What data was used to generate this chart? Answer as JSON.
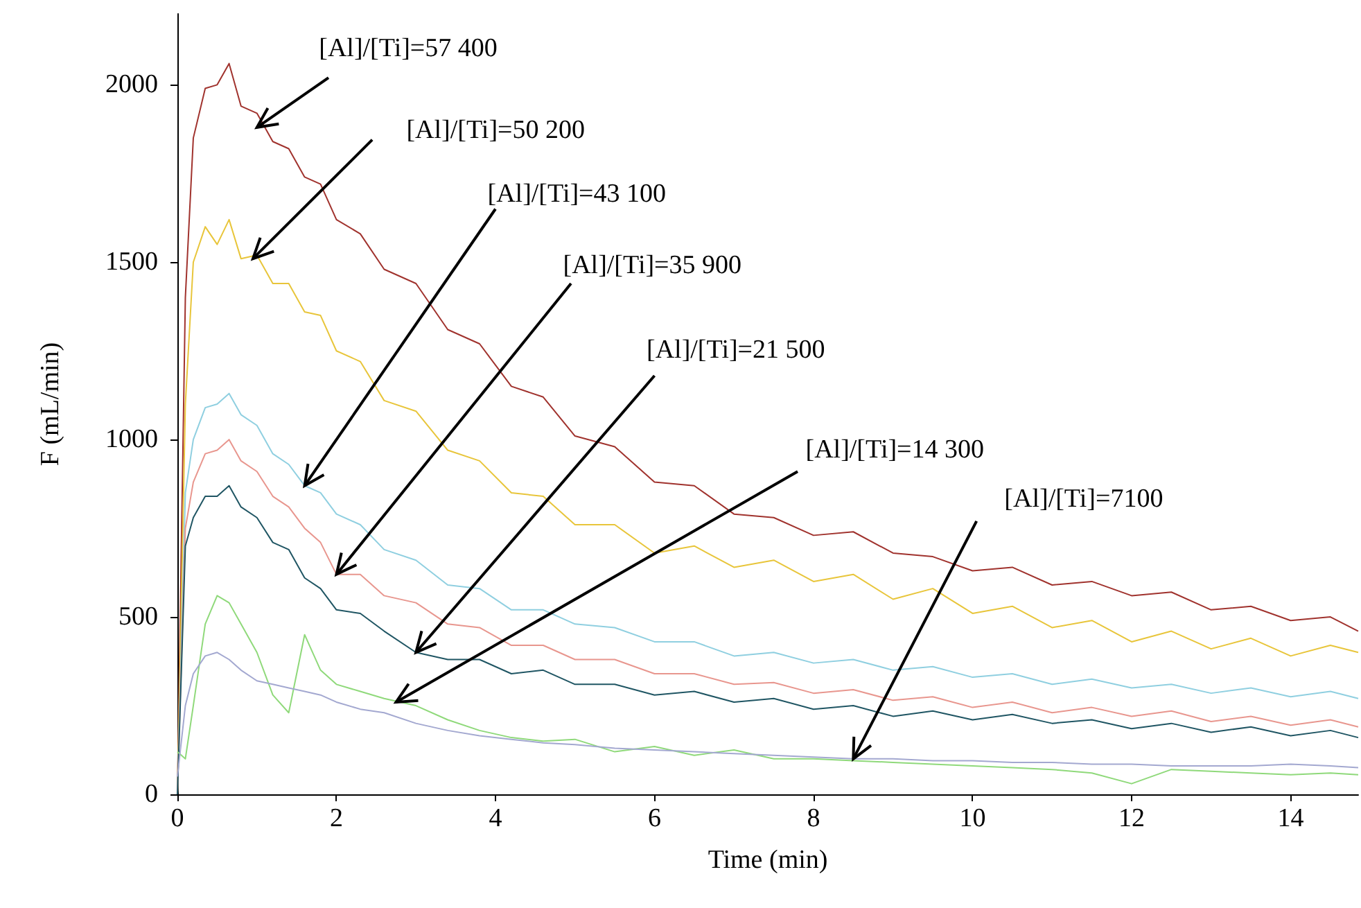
{
  "chart_data": {
    "type": "line",
    "xlabel": "Time (min)",
    "ylabel": "F (mL/min)",
    "xlim": [
      0,
      14.85
    ],
    "ylim": [
      0,
      2200
    ],
    "xticks": [
      0,
      2,
      4,
      6,
      8,
      10,
      12,
      14
    ],
    "yticks": [
      0,
      500,
      1000,
      1500,
      2000
    ],
    "grid": false,
    "marker": "none",
    "line_style": "solid",
    "x": [
      0,
      0.1,
      0.2,
      0.35,
      0.5,
      0.65,
      0.8,
      1.0,
      1.2,
      1.4,
      1.6,
      1.8,
      2.0,
      2.3,
      2.6,
      3.0,
      3.4,
      3.8,
      4.2,
      4.6,
      5.0,
      5.5,
      6.0,
      6.5,
      7.0,
      7.5,
      8.0,
      8.5,
      9.0,
      9.5,
      10.0,
      10.5,
      11.0,
      11.5,
      12.0,
      12.5,
      13.0,
      13.5,
      14.0,
      14.5,
      14.85
    ],
    "series": [
      {
        "color": "#a0322d",
        "values": [
          0,
          1400,
          1850,
          1990,
          2000,
          2060,
          1940,
          1920,
          1840,
          1820,
          1740,
          1720,
          1620,
          1580,
          1480,
          1440,
          1310,
          1270,
          1150,
          1120,
          1010,
          980,
          880,
          870,
          790,
          780,
          730,
          740,
          680,
          670,
          630,
          640,
          590,
          600,
          560,
          570,
          520,
          530,
          490,
          500,
          460
        ]
      },
      {
        "color": "#e8c53a",
        "values": [
          0,
          1100,
          1500,
          1600,
          1550,
          1620,
          1510,
          1520,
          1440,
          1440,
          1360,
          1350,
          1250,
          1220,
          1110,
          1080,
          970,
          940,
          850,
          840,
          760,
          760,
          680,
          700,
          640,
          660,
          600,
          620,
          550,
          580,
          510,
          530,
          470,
          490,
          430,
          460,
          410,
          440,
          390,
          420,
          400
        ]
      },
      {
        "color": "#8fcfe0",
        "values": [
          0,
          850,
          1000,
          1090,
          1100,
          1130,
          1070,
          1040,
          960,
          930,
          870,
          850,
          790,
          760,
          690,
          660,
          590,
          580,
          520,
          520,
          480,
          470,
          430,
          430,
          390,
          400,
          370,
          380,
          350,
          360,
          330,
          340,
          310,
          325,
          300,
          310,
          285,
          300,
          275,
          290,
          270
        ]
      },
      {
        "color": "#e8968e",
        "values": [
          0,
          750,
          880,
          960,
          970,
          1000,
          940,
          910,
          840,
          810,
          750,
          710,
          620,
          620,
          560,
          540,
          480,
          470,
          420,
          420,
          380,
          380,
          340,
          340,
          310,
          315,
          285,
          295,
          265,
          275,
          245,
          260,
          230,
          245,
          220,
          235,
          205,
          220,
          195,
          210,
          190
        ]
      },
      {
        "color": "#1f5563",
        "values": [
          0,
          700,
          780,
          840,
          840,
          870,
          810,
          780,
          710,
          690,
          610,
          580,
          520,
          510,
          460,
          400,
          380,
          380,
          340,
          350,
          310,
          310,
          280,
          290,
          260,
          270,
          240,
          250,
          220,
          235,
          210,
          225,
          200,
          210,
          185,
          200,
          175,
          190,
          165,
          180,
          160
        ]
      },
      {
        "color": "#8fd97a",
        "values": [
          120,
          100,
          250,
          480,
          560,
          540,
          480,
          400,
          280,
          230,
          450,
          350,
          310,
          290,
          270,
          250,
          210,
          180,
          160,
          150,
          155,
          120,
          135,
          110,
          125,
          100,
          100,
          95,
          90,
          85,
          80,
          75,
          70,
          60,
          30,
          70,
          65,
          60,
          55,
          60,
          55
        ]
      },
      {
        "color": "#a3a8d0",
        "values": [
          50,
          250,
          340,
          390,
          400,
          380,
          350,
          320,
          310,
          300,
          290,
          280,
          260,
          240,
          230,
          200,
          180,
          165,
          155,
          145,
          140,
          130,
          125,
          120,
          115,
          110,
          105,
          100,
          100,
          95,
          95,
          90,
          90,
          85,
          85,
          80,
          80,
          80,
          85,
          80,
          75
        ]
      }
    ],
    "annotations": [
      {
        "text": "[Al]/[Ti]=57 400",
        "x": 1.0,
        "y": 1880
      },
      {
        "text": "[Al]/[Ti]=50 200",
        "x": 0.95,
        "y": 1510
      },
      {
        "text": "[Al]/[Ti]=43 100",
        "x": 1.6,
        "y": 870
      },
      {
        "text": "[Al]/[Ti]=35 900",
        "x": 2.0,
        "y": 620
      },
      {
        "text": "[Al]/[Ti]=21 500",
        "x": 3.0,
        "y": 400
      },
      {
        "text": "[Al]/[Ti]=14 300",
        "x": 2.75,
        "y": 260
      },
      {
        "text": "[Al]/[Ti]=7100",
        "x": 8.5,
        "y": 100
      }
    ]
  }
}
